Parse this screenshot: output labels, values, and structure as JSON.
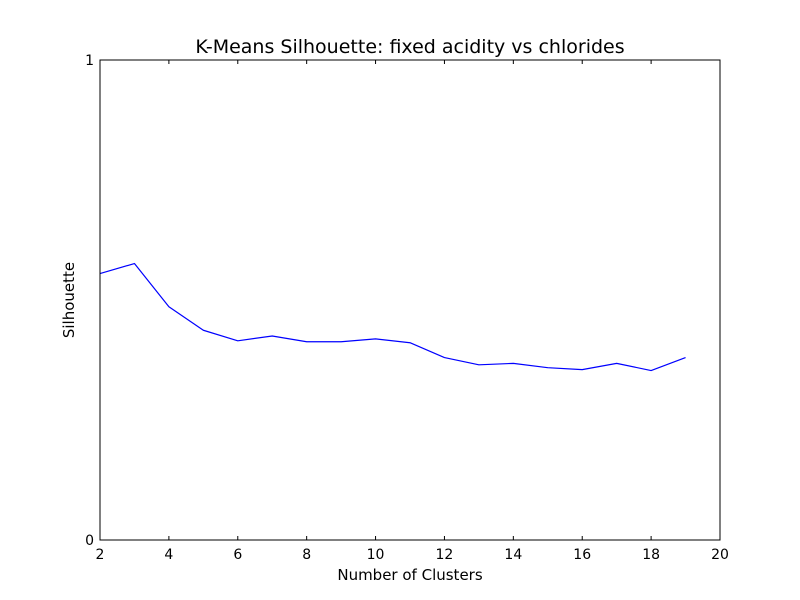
{
  "chart_data": {
    "type": "line",
    "title": "K-Means Silhouette: fixed acidity vs chlorides",
    "xlabel": "Number of Clusters",
    "ylabel": "Silhouette",
    "xlim": [
      2,
      20
    ],
    "ylim": [
      0,
      1
    ],
    "x_ticks": [
      "2",
      "4",
      "6",
      "8",
      "10",
      "12",
      "14",
      "16",
      "18",
      "20"
    ],
    "y_ticks": [
      "0",
      "1"
    ],
    "grid": false,
    "legend": "none",
    "series": [
      {
        "color": "#0000ff",
        "x": [
          2,
          3,
          4,
          5,
          6,
          7,
          8,
          9,
          10,
          11,
          12,
          13,
          14,
          15,
          16,
          17,
          18,
          19
        ],
        "values": [
          0.555,
          0.576,
          0.486,
          0.437,
          0.415,
          0.425,
          0.413,
          0.413,
          0.419,
          0.411,
          0.38,
          0.365,
          0.368,
          0.359,
          0.355,
          0.368,
          0.353,
          0.38
        ]
      }
    ]
  }
}
